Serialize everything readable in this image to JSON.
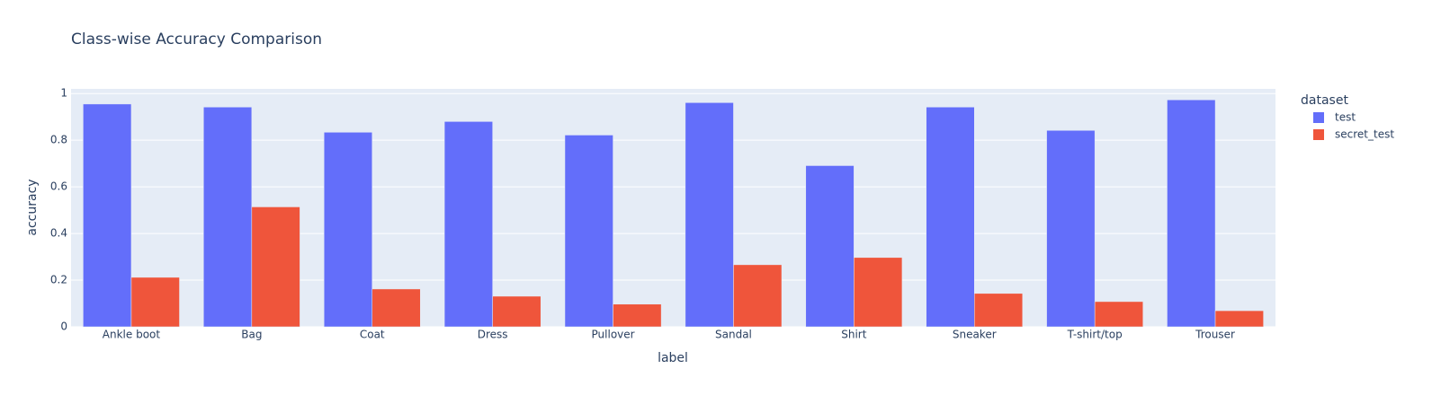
{
  "chart_data": {
    "type": "bar",
    "title": "Class-wise Accuracy Comparison",
    "x_label": "label",
    "y_label": "accuracy",
    "legend_title": "dataset",
    "categories": [
      "Ankle boot",
      "Bag",
      "Coat",
      "Dress",
      "Pullover",
      "Sandal",
      "Shirt",
      "Sneaker",
      "T-shirt/top",
      "Trouser"
    ],
    "series": [
      {
        "name": "test",
        "color": "#636efa",
        "values": [
          0.955,
          0.942,
          0.834,
          0.88,
          0.822,
          0.961,
          0.691,
          0.942,
          0.842,
          0.973
        ]
      },
      {
        "name": "secret_test",
        "color": "#ef553b",
        "values": [
          0.212,
          0.514,
          0.162,
          0.131,
          0.097,
          0.266,
          0.297,
          0.143,
          0.108,
          0.069
        ]
      }
    ],
    "ylim": [
      0,
      1.02
    ],
    "yticks": [
      0,
      0.2,
      0.4,
      0.6,
      0.8,
      1
    ],
    "grid": true,
    "legend": "right"
  }
}
